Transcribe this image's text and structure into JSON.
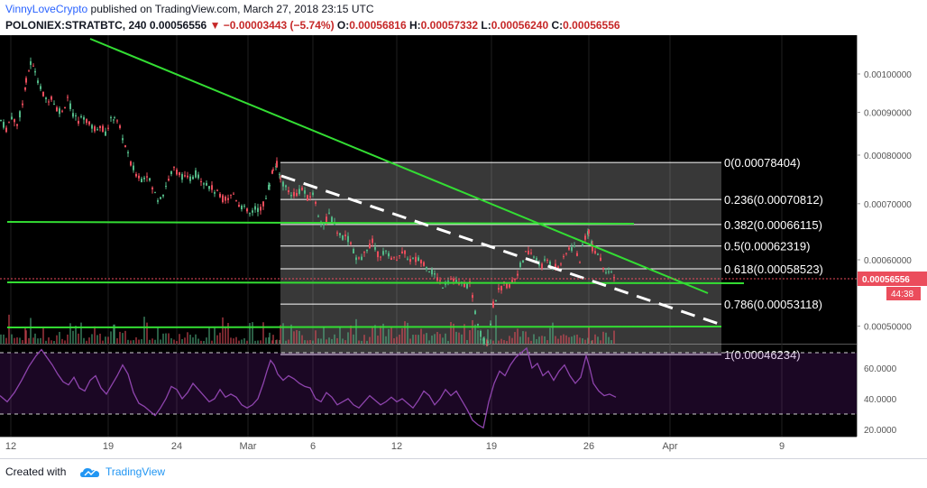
{
  "header": {
    "author": "VinnyLoveCrypto",
    "published": "published on TradingView.com, March 27, 2018 23:15 UTC",
    "symbol": "POLONIEX:STRATBTC, 240",
    "last": "0.00056556",
    "change": "−0.00003443 (−5.74%)",
    "o_label": "O:",
    "o": "0.00056816",
    "h_label": "H:",
    "h": "0.00057332",
    "l_label": "L:",
    "l": "0.00056240",
    "c_label": "C:",
    "c": "0.00056556"
  },
  "footer": {
    "created_with": "Created with",
    "brand": "TradingView"
  },
  "colors": {
    "up": "#53b987",
    "down": "#eb4d5c",
    "trend": "#33dd33",
    "rsi": "#8e44ad",
    "price_tag": "#eb4d5c"
  },
  "chart_data": {
    "type": "candlestick",
    "y_ticks": [
      "0.00100000",
      "0.00090000",
      "0.00080000",
      "0.00070000",
      "0.00060000",
      "0.00050000"
    ],
    "ylim": [
      0.00042,
      0.00107
    ],
    "x_ticks": [
      "12",
      "19",
      "24",
      "Mar",
      "6",
      "12",
      "19",
      "26",
      "Apr",
      "9"
    ],
    "price_tag": "0.00056556",
    "time_tag": "44:38",
    "fib_levels": [
      {
        "ratio": "0",
        "price": 0.00078404,
        "label": "0(0.00078404)"
      },
      {
        "ratio": "0.236",
        "price": 0.00070812,
        "label": "0.236(0.00070812)"
      },
      {
        "ratio": "0.382",
        "price": 0.00066115,
        "label": "0.382(0.00066115)"
      },
      {
        "ratio": "0.5",
        "price": 0.00062319,
        "label": "0.5(0.00062319)"
      },
      {
        "ratio": "0.618",
        "price": 0.00058523,
        "label": "0.618(0.00058523)"
      },
      {
        "ratio": "0.786",
        "price": 0.00053118,
        "label": "0.786(0.00053118)"
      },
      {
        "ratio": "1",
        "price": 0.00046234,
        "label": "1(0.00046234)"
      }
    ],
    "price_path": [
      [
        0,
        0.00088
      ],
      [
        6,
        0.00086
      ],
      [
        12,
        0.00089
      ],
      [
        18,
        0.00087
      ],
      [
        24,
        0.00092
      ],
      [
        28,
        0.00098
      ],
      [
        33,
        0.00103
      ],
      [
        38,
        0.00101
      ],
      [
        44,
        0.00096
      ],
      [
        50,
        0.00093
      ],
      [
        56,
        0.00094
      ],
      [
        62,
        0.00091
      ],
      [
        68,
        0.0009
      ],
      [
        74,
        0.00094
      ],
      [
        80,
        0.00089
      ],
      [
        86,
        0.00088
      ],
      [
        92,
        0.00089
      ],
      [
        98,
        0.00087
      ],
      [
        104,
        0.00086
      ],
      [
        110,
        0.00087
      ],
      [
        116,
        0.00085
      ],
      [
        122,
        0.00088
      ],
      [
        126,
        0.00089
      ],
      [
        132,
        0.00086
      ],
      [
        138,
        0.00082
      ],
      [
        144,
        0.00078
      ],
      [
        150,
        0.00076
      ],
      [
        156,
        0.00075
      ],
      [
        162,
        0.00076
      ],
      [
        168,
        0.00073
      ],
      [
        174,
        0.00071
      ],
      [
        180,
        0.00072
      ],
      [
        186,
        0.00075
      ],
      [
        192,
        0.00077
      ],
      [
        198,
        0.00076
      ],
      [
        204,
        0.00075
      ],
      [
        210,
        0.00075
      ],
      [
        216,
        0.00076
      ],
      [
        222,
        0.00075
      ],
      [
        228,
        0.00074
      ],
      [
        234,
        0.00073
      ],
      [
        240,
        0.00072
      ],
      [
        246,
        0.00071
      ],
      [
        252,
        0.00071
      ],
      [
        258,
        0.00072
      ],
      [
        264,
        0.0007
      ],
      [
        270,
        0.00069
      ],
      [
        276,
        0.00068
      ],
      [
        282,
        0.00069
      ],
      [
        288,
        0.00069
      ],
      [
        294,
        0.00071
      ],
      [
        298,
        0.00074
      ],
      [
        302,
        0.00077
      ],
      [
        306,
        0.00078
      ],
      [
        310,
        0.00075
      ],
      [
        316,
        0.00073
      ],
      [
        322,
        0.00072
      ],
      [
        328,
        0.00072
      ],
      [
        334,
        0.00073
      ],
      [
        340,
        0.00071
      ],
      [
        346,
        0.00072
      ],
      [
        352,
        0.00068
      ],
      [
        358,
        0.00066
      ],
      [
        364,
        0.00068
      ],
      [
        370,
        0.00066
      ],
      [
        376,
        0.00064
      ],
      [
        382,
        0.00064
      ],
      [
        388,
        0.00063
      ],
      [
        394,
        0.0006
      ],
      [
        400,
        0.0006
      ],
      [
        406,
        0.00062
      ],
      [
        412,
        0.00063
      ],
      [
        418,
        0.00061
      ],
      [
        424,
        0.00061
      ],
      [
        430,
        0.00061
      ],
      [
        436,
        0.0006
      ],
      [
        442,
        0.00061
      ],
      [
        448,
        0.00061
      ],
      [
        454,
        0.0006
      ],
      [
        460,
        0.0006
      ],
      [
        466,
        0.0006
      ],
      [
        472,
        0.00059
      ],
      [
        478,
        0.00058
      ],
      [
        484,
        0.00057
      ],
      [
        490,
        0.00056
      ],
      [
        496,
        0.00057
      ],
      [
        502,
        0.00057
      ],
      [
        508,
        0.00056
      ],
      [
        514,
        0.00056
      ],
      [
        520,
        0.00056
      ],
      [
        526,
        0.00052
      ],
      [
        532,
        0.00049
      ],
      [
        536,
        0.00048
      ],
      [
        540,
        0.00048
      ],
      [
        546,
        0.00053
      ],
      [
        552,
        0.00055
      ],
      [
        558,
        0.00056
      ],
      [
        564,
        0.00056
      ],
      [
        570,
        0.00057
      ],
      [
        576,
        0.00059
      ],
      [
        582,
        0.00061
      ],
      [
        588,
        0.00061
      ],
      [
        594,
        0.0006
      ],
      [
        600,
        0.00059
      ],
      [
        606,
        0.0006
      ],
      [
        612,
        0.00059
      ],
      [
        618,
        0.00059
      ],
      [
        624,
        0.0006
      ],
      [
        630,
        0.00062
      ],
      [
        636,
        0.00062
      ],
      [
        642,
        0.0006
      ],
      [
        648,
        0.00064
      ],
      [
        652,
        0.00065
      ],
      [
        656,
        0.00062
      ],
      [
        662,
        0.00061
      ],
      [
        668,
        0.00059
      ],
      [
        674,
        0.00058
      ],
      [
        680,
        0.00057
      ],
      [
        683,
        0.00056556
      ]
    ],
    "rsi_ticks": [
      "60.0000",
      "40.0000",
      "20.0000"
    ],
    "rsi_ylim": [
      15,
      83
    ],
    "rsi_bands": [
      70,
      30
    ],
    "rsi_path": [
      [
        0,
        42
      ],
      [
        8,
        38
      ],
      [
        16,
        44
      ],
      [
        24,
        52
      ],
      [
        32,
        61
      ],
      [
        40,
        68
      ],
      [
        46,
        72
      ],
      [
        52,
        67
      ],
      [
        58,
        62
      ],
      [
        64,
        56
      ],
      [
        70,
        51
      ],
      [
        76,
        49
      ],
      [
        82,
        54
      ],
      [
        88,
        47
      ],
      [
        94,
        45
      ],
      [
        100,
        52
      ],
      [
        106,
        55
      ],
      [
        112,
        47
      ],
      [
        118,
        43
      ],
      [
        124,
        49
      ],
      [
        130,
        55
      ],
      [
        136,
        62
      ],
      [
        142,
        56
      ],
      [
        148,
        44
      ],
      [
        154,
        37
      ],
      [
        160,
        35
      ],
      [
        166,
        32
      ],
      [
        172,
        29
      ],
      [
        178,
        34
      ],
      [
        184,
        40
      ],
      [
        190,
        48
      ],
      [
        196,
        46
      ],
      [
        202,
        40
      ],
      [
        208,
        44
      ],
      [
        214,
        50
      ],
      [
        220,
        46
      ],
      [
        226,
        42
      ],
      [
        232,
        38
      ],
      [
        238,
        40
      ],
      [
        244,
        46
      ],
      [
        250,
        41
      ],
      [
        256,
        43
      ],
      [
        262,
        41
      ],
      [
        268,
        36
      ],
      [
        274,
        34
      ],
      [
        280,
        36
      ],
      [
        286,
        40
      ],
      [
        292,
        50
      ],
      [
        296,
        58
      ],
      [
        300,
        65
      ],
      [
        304,
        62
      ],
      [
        308,
        56
      ],
      [
        314,
        52
      ],
      [
        320,
        55
      ],
      [
        326,
        53
      ],
      [
        332,
        50
      ],
      [
        338,
        48
      ],
      [
        344,
        47
      ],
      [
        350,
        40
      ],
      [
        356,
        38
      ],
      [
        362,
        44
      ],
      [
        368,
        41
      ],
      [
        374,
        36
      ],
      [
        380,
        38
      ],
      [
        386,
        40
      ],
      [
        392,
        36
      ],
      [
        398,
        34
      ],
      [
        404,
        38
      ],
      [
        410,
        42
      ],
      [
        416,
        39
      ],
      [
        422,
        36
      ],
      [
        428,
        38
      ],
      [
        434,
        41
      ],
      [
        440,
        38
      ],
      [
        446,
        40
      ],
      [
        452,
        37
      ],
      [
        458,
        34
      ],
      [
        464,
        39
      ],
      [
        470,
        45
      ],
      [
        476,
        42
      ],
      [
        482,
        36
      ],
      [
        488,
        40
      ],
      [
        494,
        46
      ],
      [
        500,
        42
      ],
      [
        506,
        45
      ],
      [
        512,
        39
      ],
      [
        518,
        33
      ],
      [
        524,
        26
      ],
      [
        530,
        23
      ],
      [
        536,
        21
      ],
      [
        542,
        38
      ],
      [
        548,
        50
      ],
      [
        554,
        58
      ],
      [
        560,
        55
      ],
      [
        566,
        62
      ],
      [
        572,
        67
      ],
      [
        578,
        70
      ],
      [
        584,
        73
      ],
      [
        590,
        60
      ],
      [
        596,
        63
      ],
      [
        602,
        55
      ],
      [
        608,
        58
      ],
      [
        614,
        52
      ],
      [
        620,
        58
      ],
      [
        626,
        62
      ],
      [
        632,
        55
      ],
      [
        638,
        50
      ],
      [
        644,
        54
      ],
      [
        650,
        68
      ],
      [
        654,
        60
      ],
      [
        658,
        50
      ],
      [
        664,
        45
      ],
      [
        670,
        42
      ],
      [
        676,
        43
      ],
      [
        683,
        41
      ]
    ]
  }
}
